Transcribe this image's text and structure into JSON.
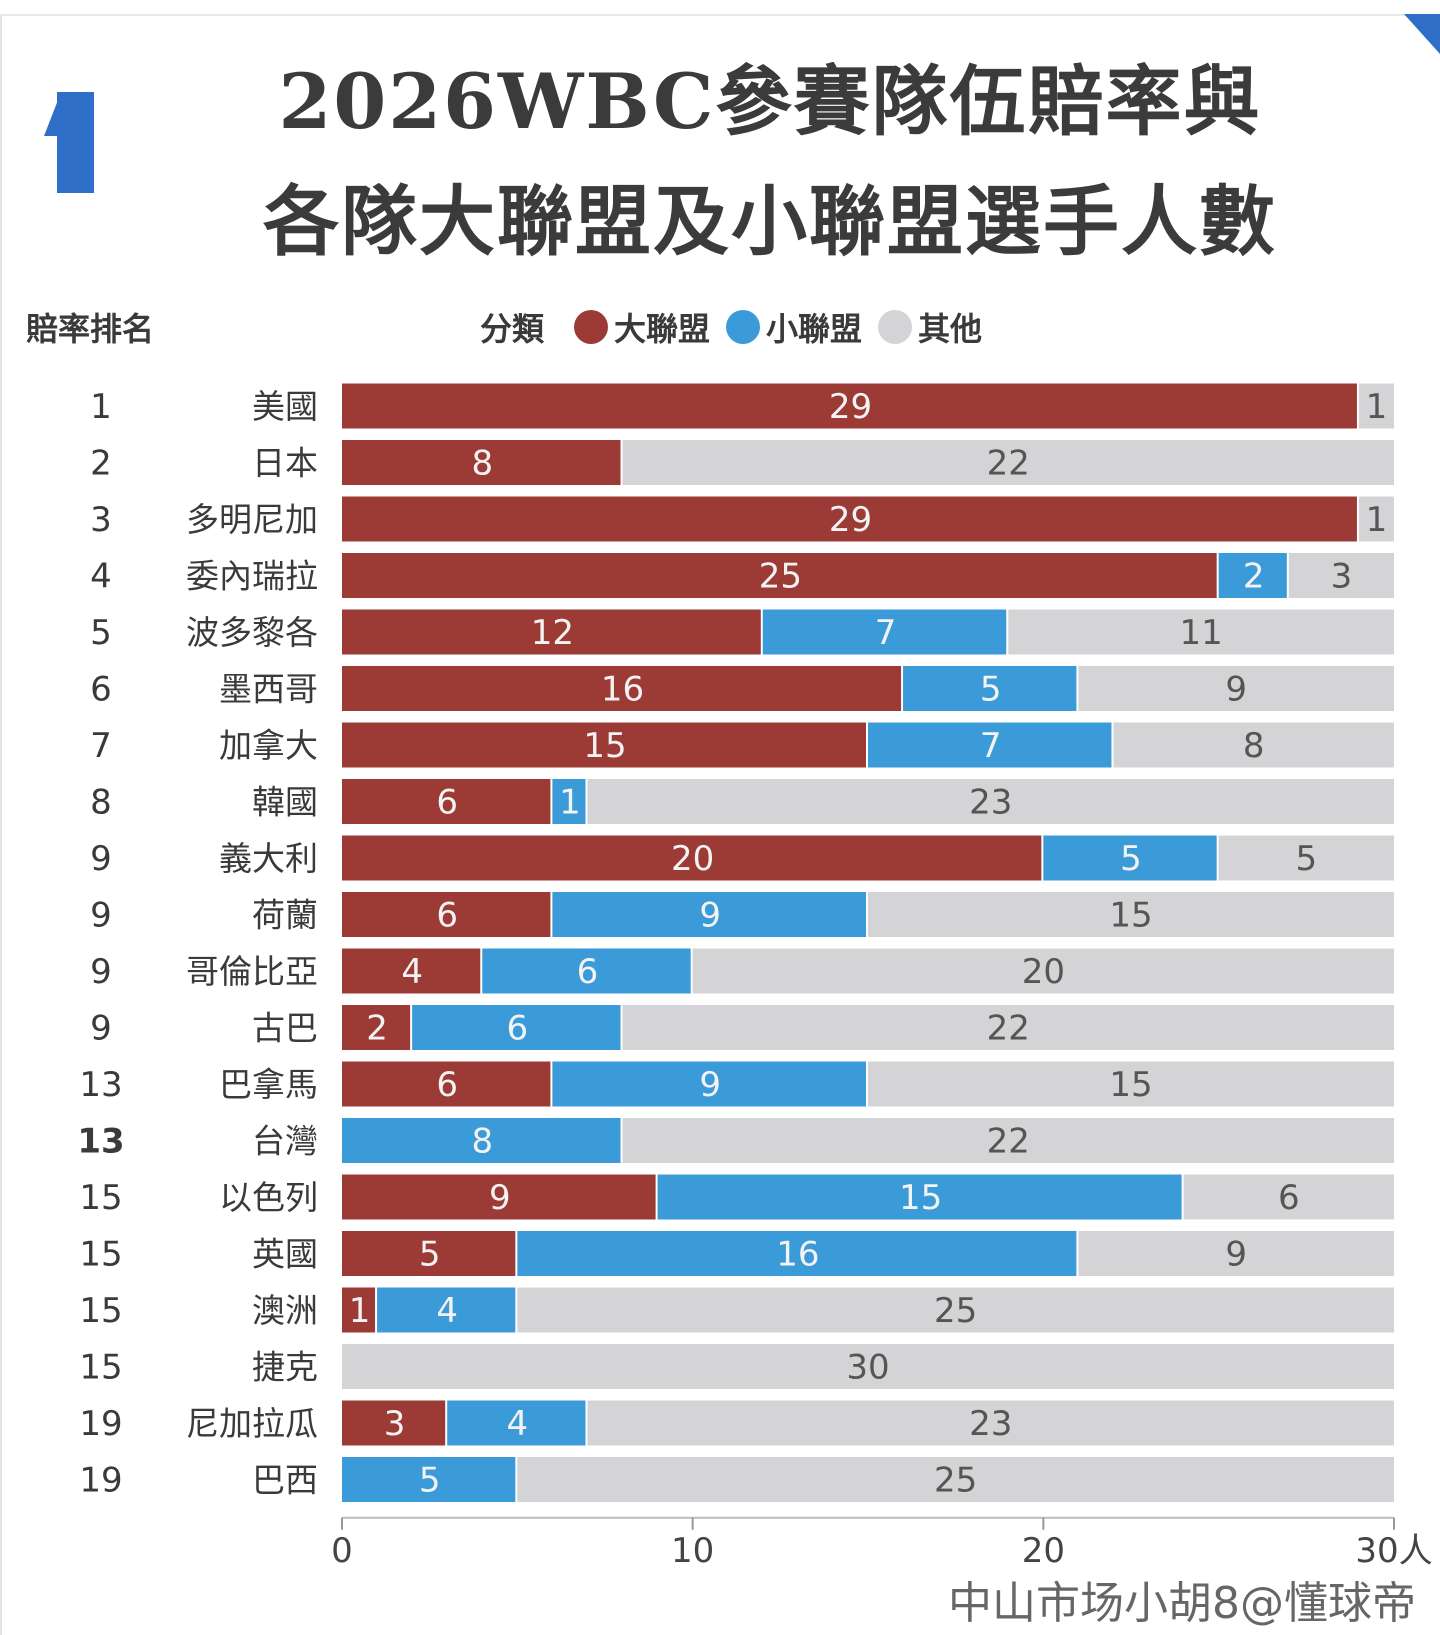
{
  "title_line1": "2026WBC參賽隊伍賠率與",
  "title_line2": "各隊大聯盟及小聯盟選手人數",
  "rank_header": "賠率排名",
  "legend": {
    "label": "分類",
    "items": [
      {
        "name": "大聯盟",
        "color": "#9c3a35"
      },
      {
        "name": "小聯盟",
        "color": "#3b9ad8"
      },
      {
        "name": "其他",
        "color": "#d4d4d6"
      }
    ]
  },
  "watermark": "中山市场小胡8@懂球帝",
  "chart_data": {
    "type": "bar",
    "orientation": "horizontal-stacked",
    "title": "2026WBC參賽隊伍賠率與各隊大聯盟及小聯盟選手人數",
    "xlim": [
      0,
      30
    ],
    "x_ticks": [
      "0",
      "10",
      "20",
      "30人"
    ],
    "x_tick_values": [
      0,
      10,
      20,
      30
    ],
    "ranks": [
      "1",
      "2",
      "3",
      "4",
      "5",
      "6",
      "7",
      "8",
      "9",
      "9",
      "9",
      "9",
      "13",
      "13",
      "15",
      "15",
      "15",
      "15",
      "19",
      "19"
    ],
    "categories": [
      "美國",
      "日本",
      "多明尼加",
      "委內瑞拉",
      "波多黎各",
      "墨西哥",
      "加拿大",
      "韓國",
      "義大利",
      "荷蘭",
      "哥倫比亞",
      "古巴",
      "巴拿馬",
      "台灣",
      "以色列",
      "英國",
      "澳洲",
      "捷克",
      "尼加拉瓜",
      "巴西"
    ],
    "series": [
      {
        "name": "大聯盟",
        "color": "#9c3a35",
        "values": [
          29,
          8,
          29,
          25,
          12,
          16,
          15,
          6,
          20,
          6,
          4,
          2,
          6,
          0,
          9,
          5,
          1,
          0,
          3,
          0
        ]
      },
      {
        "name": "小聯盟",
        "color": "#3b9ad8",
        "values": [
          0,
          0,
          0,
          2,
          7,
          5,
          7,
          1,
          5,
          9,
          6,
          6,
          9,
          8,
          15,
          16,
          4,
          0,
          4,
          5
        ]
      },
      {
        "name": "其他",
        "color": "#d4d4d6",
        "values": [
          1,
          22,
          1,
          3,
          11,
          9,
          8,
          23,
          5,
          15,
          20,
          22,
          15,
          22,
          6,
          9,
          25,
          30,
          23,
          25
        ]
      }
    ],
    "legend_position": "top"
  }
}
